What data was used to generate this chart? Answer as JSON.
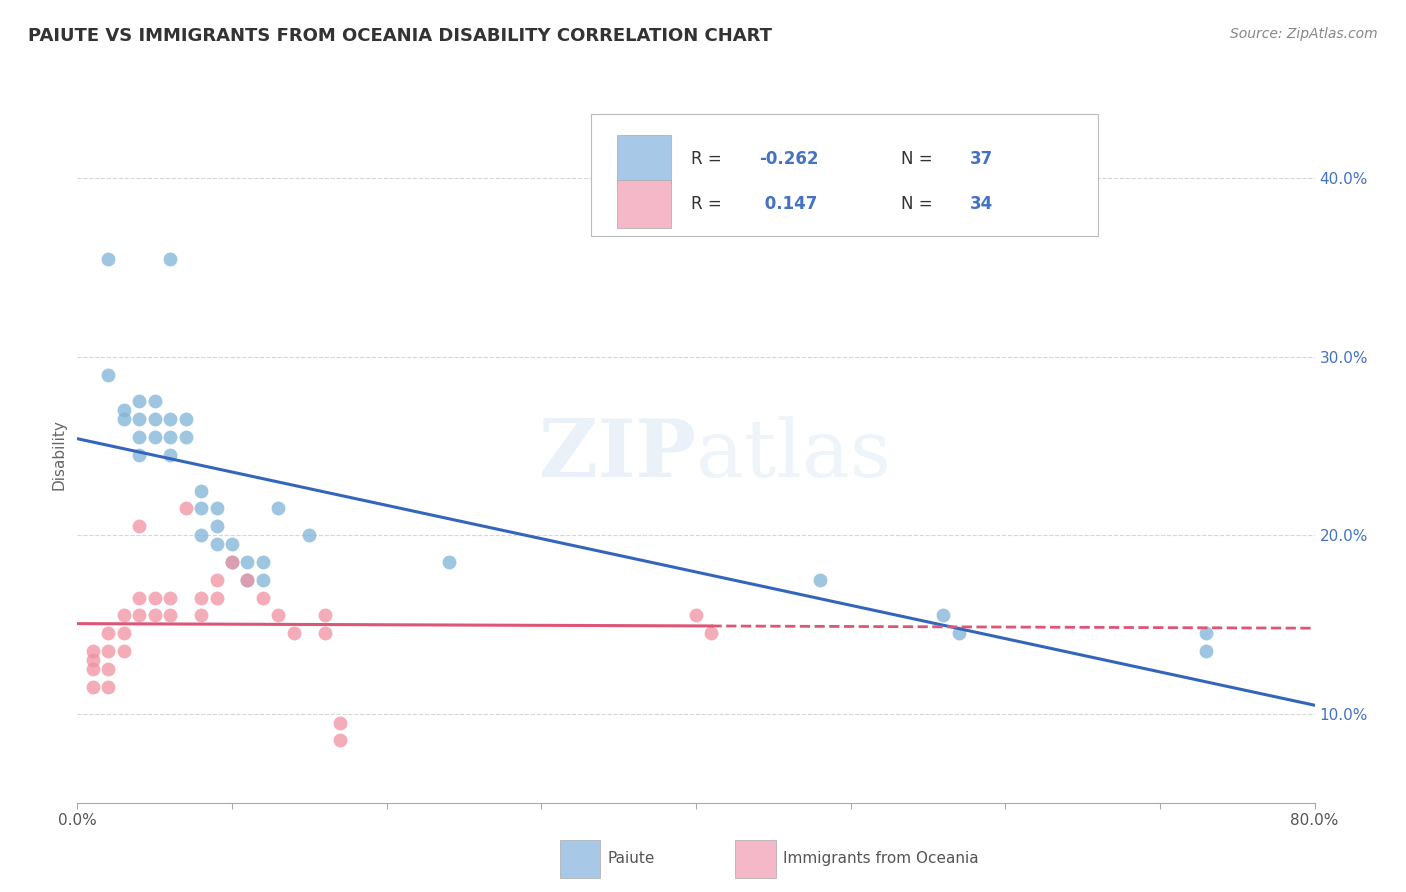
{
  "title": "PAIUTE VS IMMIGRANTS FROM OCEANIA DISABILITY CORRELATION CHART",
  "source": "Source: ZipAtlas.com",
  "ylabel": "Disability",
  "xlim": [
    0.0,
    0.8
  ],
  "ylim": [
    0.05,
    0.44
  ],
  "ytick_positions": [
    0.1,
    0.2,
    0.3,
    0.4
  ],
  "ytick_labels": [
    "10.0%",
    "20.0%",
    "30.0%",
    "40.0%"
  ],
  "xtick_positions": [
    0.0,
    0.1,
    0.2,
    0.3,
    0.4,
    0.5,
    0.6,
    0.7,
    0.8
  ],
  "legend1_color": "#a8c8e8",
  "legend2_color": "#f4b8c8",
  "series1_color": "#7fb3d8",
  "series2_color": "#f090a0",
  "line1_color": "#3366bb",
  "line2_color": "#dd5577",
  "watermark": "ZIPatlas",
  "background_color": "#ffffff",
  "grid_color": "#cccccc",
  "r1": "-0.262",
  "n1": "37",
  "r2": "0.147",
  "n2": "34",
  "paiute_x": [
    0.02,
    0.06,
    0.02,
    0.03,
    0.03,
    0.04,
    0.04,
    0.04,
    0.04,
    0.05,
    0.05,
    0.05,
    0.06,
    0.06,
    0.06,
    0.07,
    0.07,
    0.08,
    0.08,
    0.08,
    0.09,
    0.09,
    0.09,
    0.1,
    0.1,
    0.11,
    0.11,
    0.12,
    0.12,
    0.13,
    0.15,
    0.24,
    0.48,
    0.56,
    0.57,
    0.73,
    0.73
  ],
  "paiute_y": [
    0.355,
    0.355,
    0.29,
    0.27,
    0.265,
    0.275,
    0.265,
    0.255,
    0.245,
    0.275,
    0.265,
    0.255,
    0.265,
    0.255,
    0.245,
    0.265,
    0.255,
    0.225,
    0.215,
    0.2,
    0.215,
    0.205,
    0.195,
    0.195,
    0.185,
    0.185,
    0.175,
    0.185,
    0.175,
    0.215,
    0.2,
    0.185,
    0.175,
    0.155,
    0.145,
    0.145,
    0.135
  ],
  "oceania_x": [
    0.01,
    0.01,
    0.01,
    0.01,
    0.02,
    0.02,
    0.02,
    0.02,
    0.03,
    0.03,
    0.03,
    0.04,
    0.04,
    0.04,
    0.05,
    0.05,
    0.06,
    0.06,
    0.07,
    0.08,
    0.08,
    0.09,
    0.09,
    0.1,
    0.11,
    0.12,
    0.13,
    0.14,
    0.16,
    0.16,
    0.17,
    0.17,
    0.4,
    0.41
  ],
  "oceania_y": [
    0.135,
    0.13,
    0.125,
    0.115,
    0.145,
    0.135,
    0.125,
    0.115,
    0.155,
    0.145,
    0.135,
    0.205,
    0.165,
    0.155,
    0.165,
    0.155,
    0.165,
    0.155,
    0.215,
    0.165,
    0.155,
    0.175,
    0.165,
    0.185,
    0.175,
    0.165,
    0.155,
    0.145,
    0.155,
    0.145,
    0.095,
    0.085,
    0.155,
    0.145
  ]
}
